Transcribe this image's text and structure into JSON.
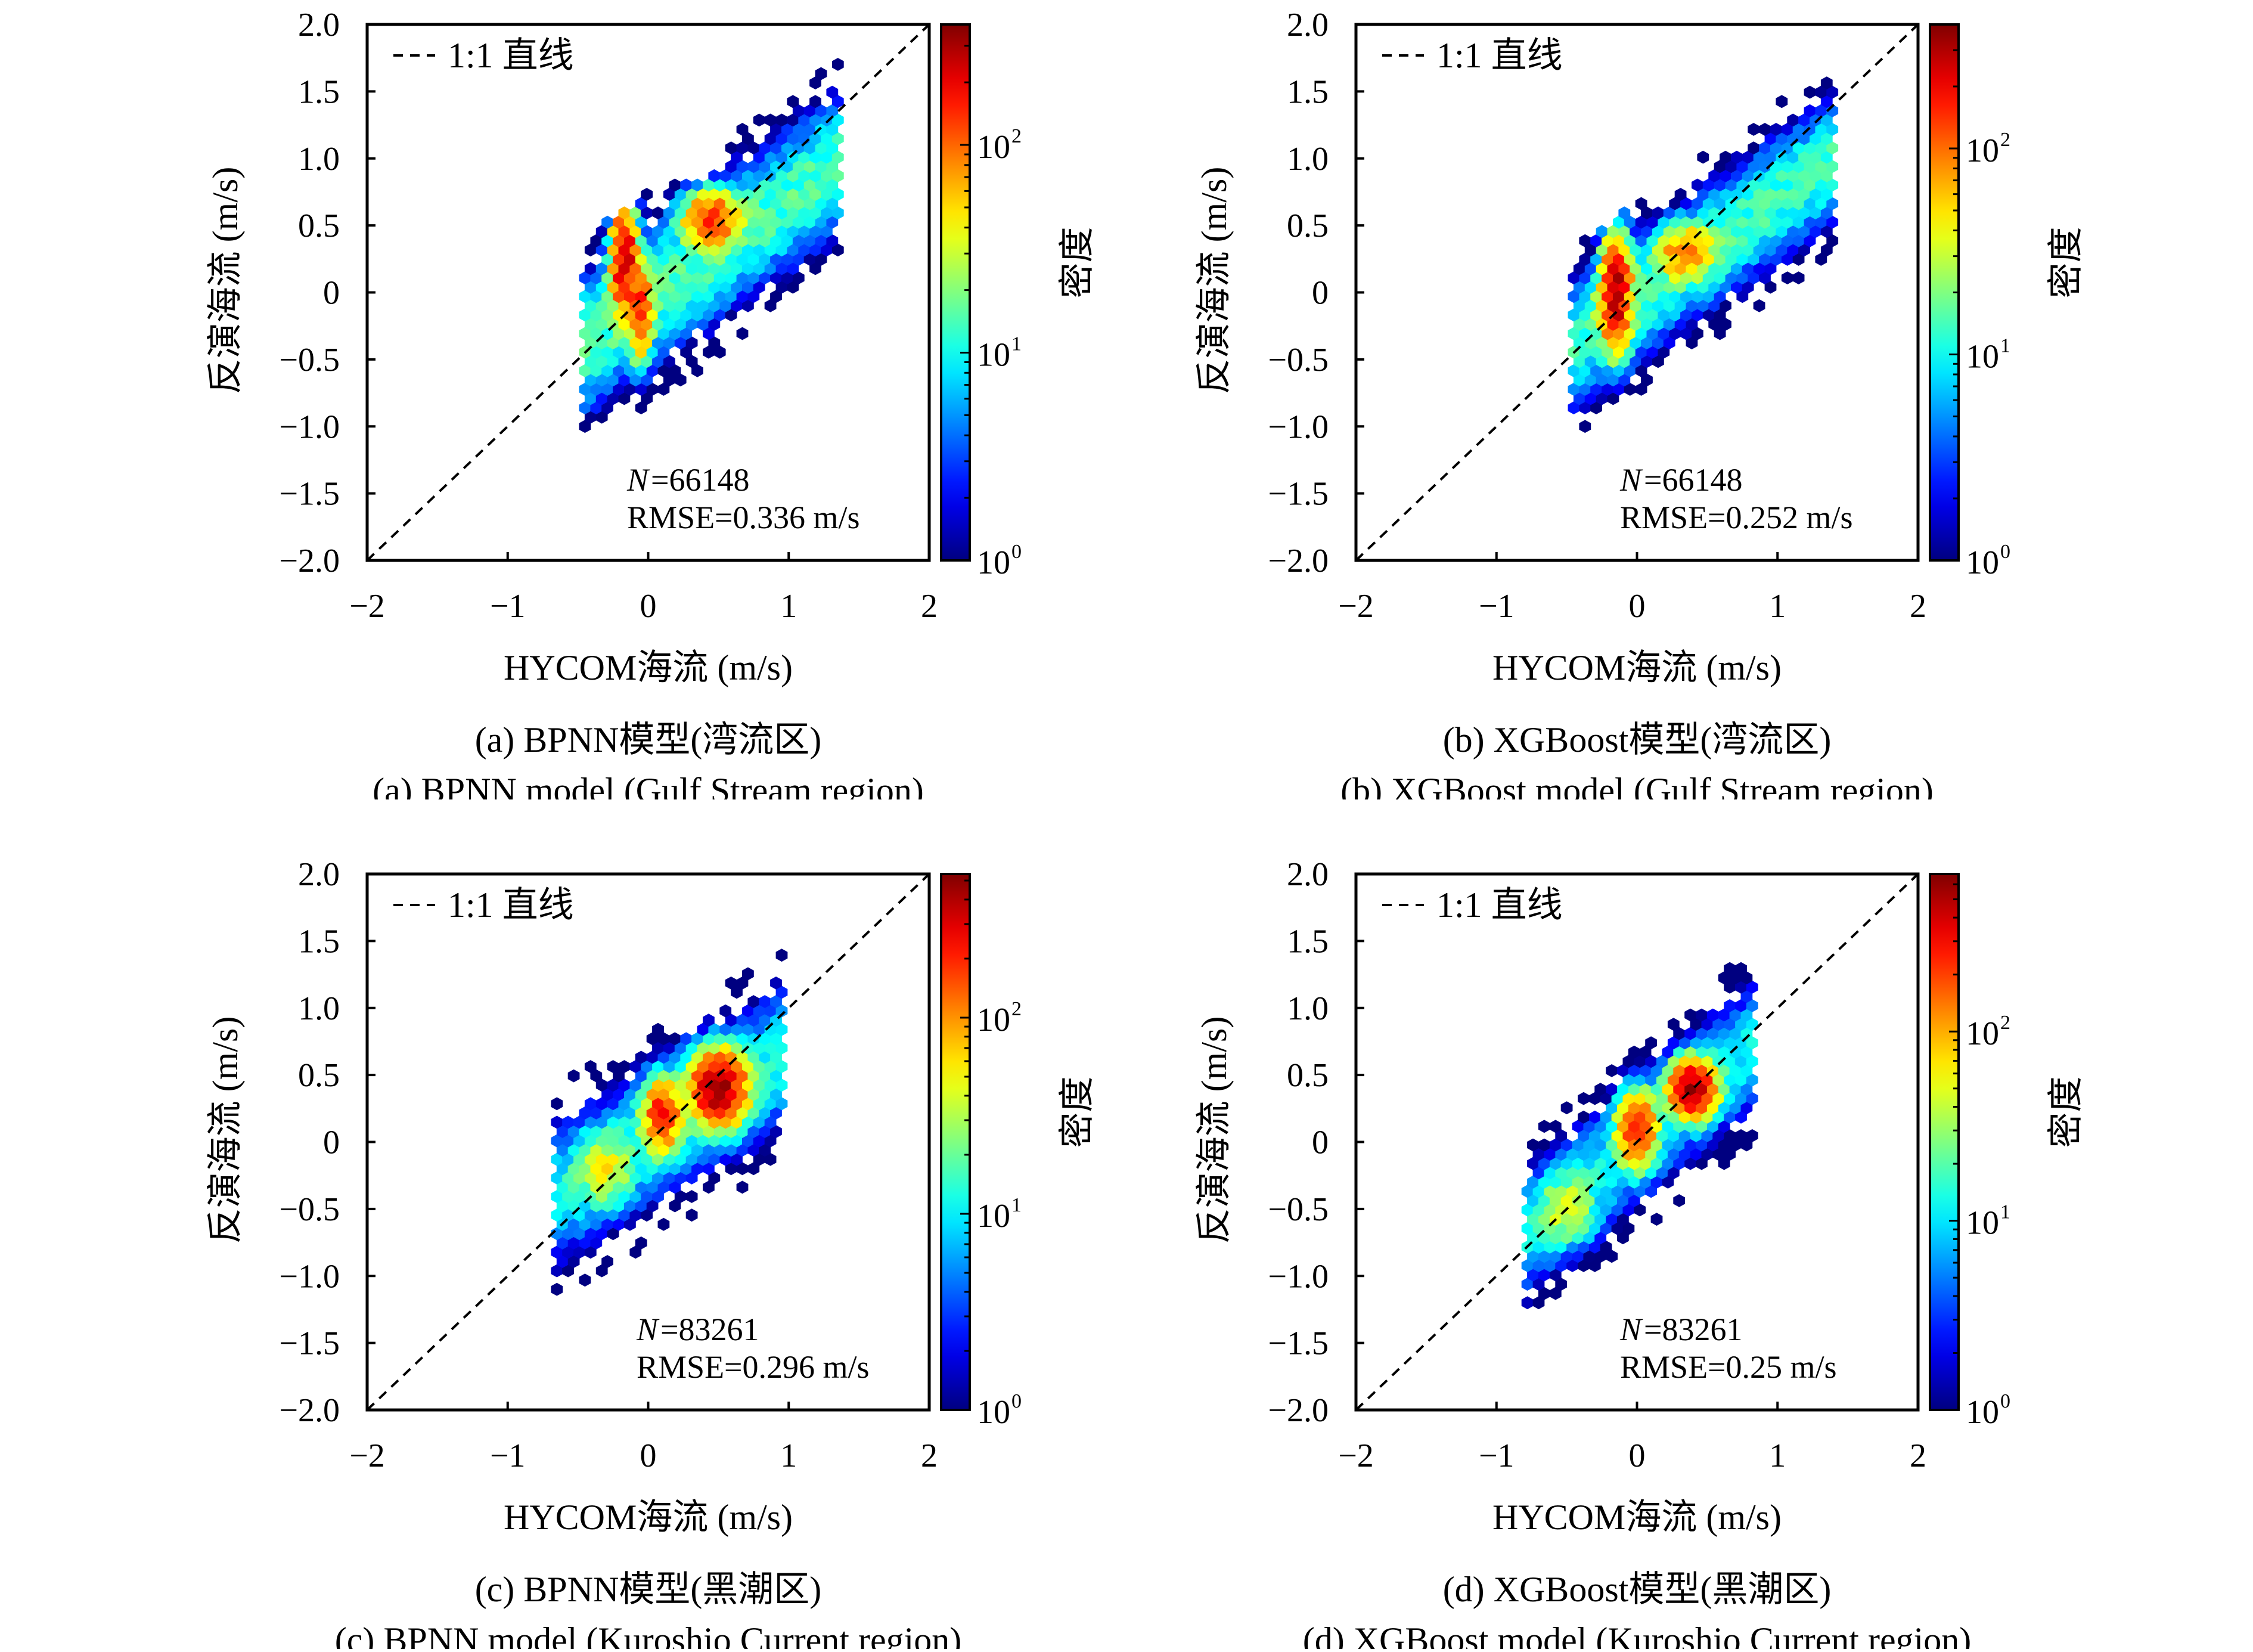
{
  "panels": [
    {
      "caption_cn": "(a) BPNN模型(湾流区)",
      "caption_en": "(a) BPNN model (Gulf Stream region)",
      "xlabel": "HYCOM海流 (m/s)",
      "ylabel": "反演海流 (m/s)",
      "legend_label": "1:1 直线",
      "n_symbol": "N",
      "n_value": "=66148",
      "rmse": "RMSE=0.336 m/s",
      "colorbar_label": "密度",
      "x_ticks": [
        "−2",
        "−1",
        "0",
        "1",
        "2"
      ],
      "y_ticks": [
        "2.0",
        "1.5",
        "1.0",
        "0.5",
        "0",
        "−0.5",
        "−1.0",
        "−1.5",
        "−2.0"
      ],
      "colorbar_ticks": [
        {
          "base": "10",
          "exp": "0"
        },
        {
          "base": "10",
          "exp": "1"
        },
        {
          "base": "10",
          "exp": "2"
        }
      ]
    },
    {
      "caption_cn": "(b) XGBoost模型(湾流区)",
      "caption_en": "(b) XGBoost model (Gulf Stream region)",
      "xlabel": "HYCOM海流 (m/s)",
      "ylabel": "反演海流 (m/s)",
      "legend_label": "1:1 直线",
      "n_symbol": "N",
      "n_value": "=66148",
      "rmse": "RMSE=0.252 m/s",
      "colorbar_label": "密度",
      "x_ticks": [
        "−2",
        "−1",
        "0",
        "1",
        "2"
      ],
      "y_ticks": [
        "2.0",
        "1.5",
        "1.0",
        "0.5",
        "0",
        "−0.5",
        "−1.0",
        "−1.5",
        "−2.0"
      ],
      "colorbar_ticks": [
        {
          "base": "10",
          "exp": "0"
        },
        {
          "base": "10",
          "exp": "1"
        },
        {
          "base": "10",
          "exp": "2"
        }
      ]
    },
    {
      "caption_cn": "(c) BPNN模型(黑潮区)",
      "caption_en": "(c) BPNN model (Kuroshio Current region)",
      "xlabel": "HYCOM海流 (m/s)",
      "ylabel": "反演海流 (m/s)",
      "legend_label": "1:1 直线",
      "n_symbol": "N",
      "n_value": "=83261",
      "rmse": "RMSE=0.296 m/s",
      "colorbar_label": "密度",
      "x_ticks": [
        "−2",
        "−1",
        "0",
        "1",
        "2"
      ],
      "y_ticks": [
        "2.0",
        "1.5",
        "1.0",
        "0.5",
        "0",
        "−0.5",
        "−1.0",
        "−1.5",
        "−2.0"
      ],
      "colorbar_ticks": [
        {
          "base": "10",
          "exp": "0"
        },
        {
          "base": "10",
          "exp": "1"
        },
        {
          "base": "10",
          "exp": "2"
        }
      ]
    },
    {
      "caption_cn": "(d) XGBoost模型(黑潮区)",
      "caption_en": "(d) XGBoost model (Kuroshio Current region)",
      "xlabel": "HYCOM海流 (m/s)",
      "ylabel": "反演海流 (m/s)",
      "legend_label": "1:1 直线",
      "n_symbol": "N",
      "n_value": "=83261",
      "rmse": "RMSE=0.25 m/s",
      "colorbar_label": "密度",
      "x_ticks": [
        "−2",
        "−1",
        "0",
        "1",
        "2"
      ],
      "y_ticks": [
        "2.0",
        "1.5",
        "1.0",
        "0.5",
        "0",
        "−0.5",
        "−1.0",
        "−1.5",
        "−2.0"
      ],
      "colorbar_ticks": [
        {
          "base": "10",
          "exp": "0"
        },
        {
          "base": "10",
          "exp": "1"
        },
        {
          "base": "10",
          "exp": "2"
        }
      ]
    }
  ],
  "chart_data": [
    {
      "type": "hexbin",
      "xlabel": "HYCOM海流 (m/s)",
      "ylabel": "反演海流 (m/s)",
      "xlim": [
        -2,
        2
      ],
      "ylim": [
        -2,
        2
      ],
      "colormap": "jet",
      "color_scale": "log",
      "colorbar_range": [
        1,
        380
      ],
      "reference_line": "y = x (dashed)",
      "legend_placement": "top-left",
      "N": 66148,
      "rmse_m_s": 0.336,
      "data_extent": {
        "x": [
          -0.45,
          1.38
        ],
        "y": [
          -1.0,
          1.75
        ]
      },
      "trend": {
        "slope": 0.75,
        "intercept": -0.05,
        "spread": 0.5,
        "background_density": 15
      },
      "density_cores": [
        {
          "x": -0.17,
          "y": 0.25,
          "sx": 0.07,
          "sy": 0.3,
          "count": 250
        },
        {
          "x": 0.45,
          "y": 0.55,
          "sx": 0.15,
          "sy": 0.15,
          "count": 150
        },
        {
          "x": -0.05,
          "y": -0.15,
          "sx": 0.06,
          "sy": 0.25,
          "count": 150
        }
      ]
    },
    {
      "type": "hexbin",
      "xlabel": "HYCOM海流 (m/s)",
      "ylabel": "反演海流 (m/s)",
      "xlim": [
        -2,
        2
      ],
      "ylim": [
        -2,
        2
      ],
      "colormap": "jet",
      "color_scale": "log",
      "colorbar_range": [
        1,
        400
      ],
      "reference_line": "y = x (dashed)",
      "legend_placement": "top-left",
      "N": 66148,
      "rmse_m_s": 0.252,
      "data_extent": {
        "x": [
          -0.45,
          1.4
        ],
        "y": [
          -1.0,
          1.65
        ]
      },
      "trend": {
        "slope": 0.75,
        "intercept": -0.05,
        "spread": 0.45,
        "background_density": 14
      },
      "density_cores": [
        {
          "x": -0.15,
          "y": 0.0,
          "sx": 0.08,
          "sy": 0.3,
          "count": 300
        },
        {
          "x": 0.35,
          "y": 0.3,
          "sx": 0.15,
          "sy": 0.15,
          "count": 100
        }
      ]
    },
    {
      "type": "hexbin",
      "xlabel": "HYCOM海流 (m/s)",
      "ylabel": "反演海流 (m/s)",
      "xlim": [
        -2,
        2
      ],
      "ylim": [
        -2,
        2
      ],
      "colormap": "jet",
      "color_scale": "log",
      "colorbar_range": [
        1,
        540
      ],
      "reference_line": "y = x (dashed)",
      "legend_placement": "top-left",
      "N": 83261,
      "rmse_m_s": 0.296,
      "data_extent": {
        "x": [
          -0.65,
          0.97
        ],
        "y": [
          -1.1,
          1.7
        ]
      },
      "trend": {
        "slope": 0.63,
        "intercept": 0.03,
        "spread": 0.5,
        "background_density": 12
      },
      "density_cores": [
        {
          "x": 0.5,
          "y": 0.4,
          "sx": 0.15,
          "sy": 0.2,
          "count": 400
        },
        {
          "x": 0.1,
          "y": 0.2,
          "sx": 0.1,
          "sy": 0.2,
          "count": 200
        },
        {
          "x": -0.3,
          "y": -0.2,
          "sx": 0.15,
          "sy": 0.2,
          "count": 40
        }
      ]
    },
    {
      "type": "hexbin",
      "xlabel": "HYCOM海流 (m/s)",
      "ylabel": "反演海流 (m/s)",
      "xlim": [
        -2,
        2
      ],
      "ylim": [
        -2,
        2
      ],
      "colormap": "jet",
      "color_scale": "log",
      "colorbar_range": [
        1,
        680
      ],
      "reference_line": "y = x (dashed)",
      "legend_placement": "top-left",
      "N": 83261,
      "rmse_m_s": 0.25,
      "data_extent": {
        "x": [
          -0.78,
          0.85
        ],
        "y": [
          -1.2,
          1.55
        ]
      },
      "trend": {
        "slope": 0.87,
        "intercept": 0.0,
        "spread": 0.45,
        "background_density": 12
      },
      "density_cores": [
        {
          "x": 0.4,
          "y": 0.4,
          "sx": 0.12,
          "sy": 0.15,
          "count": 500
        },
        {
          "x": 0.0,
          "y": 0.1,
          "sx": 0.1,
          "sy": 0.2,
          "count": 250
        },
        {
          "x": -0.5,
          "y": -0.5,
          "sx": 0.15,
          "sy": 0.2,
          "count": 40
        }
      ]
    }
  ]
}
